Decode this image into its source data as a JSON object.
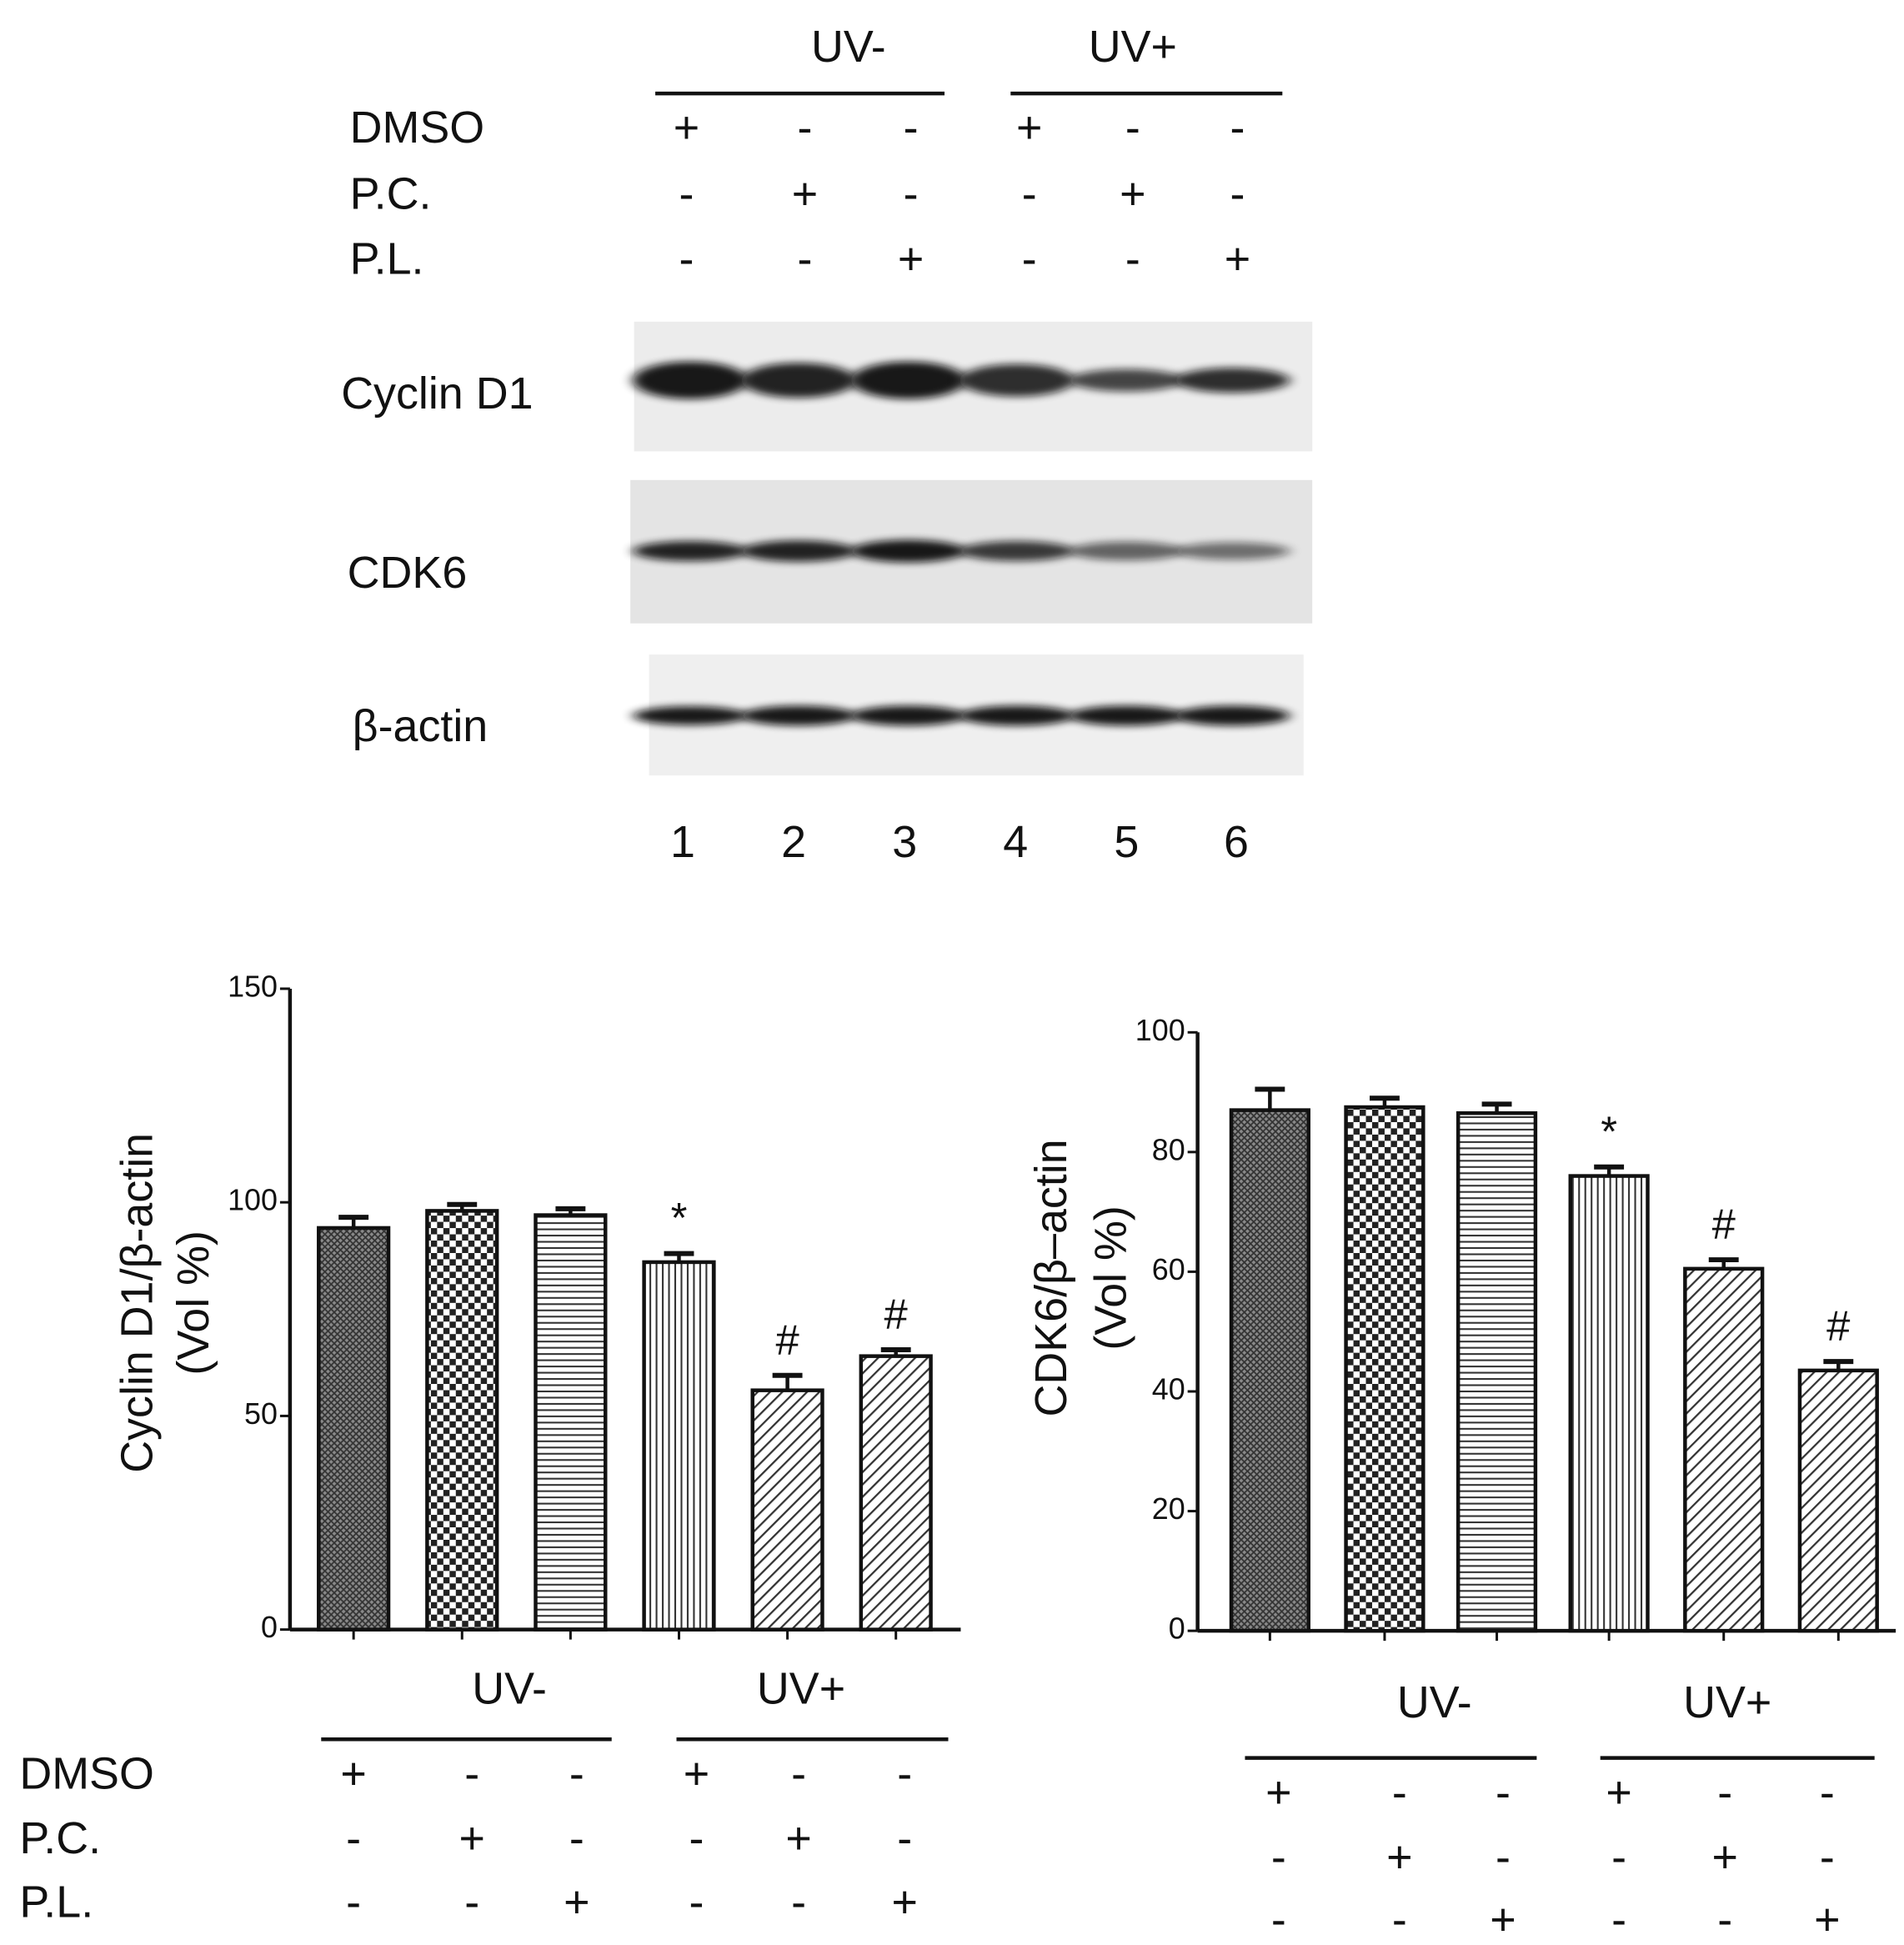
{
  "blot": {
    "groups": [
      "UV-",
      "UV+"
    ],
    "rows": [
      {
        "label": "DMSO",
        "signs": [
          "+",
          "-",
          "-",
          "+",
          "-",
          "-"
        ]
      },
      {
        "label": "P.C.",
        "signs": [
          "-",
          "+",
          "-",
          "-",
          "+",
          "-"
        ]
      },
      {
        "label": "P.L.",
        "signs": [
          "-",
          "-",
          "+",
          "-",
          "-",
          "+"
        ]
      }
    ],
    "bands": [
      "Cyclin D1",
      "CDK6",
      "β-actin"
    ],
    "lanes": [
      "1",
      "2",
      "3",
      "4",
      "5",
      "6"
    ]
  },
  "chart_data": [
    {
      "type": "bar",
      "ylabel": [
        "Cyclin D1/β-actin",
        "(Vol %)"
      ],
      "values": [
        94,
        98,
        97,
        86,
        56,
        64
      ],
      "errors": [
        2.5,
        1.5,
        1.5,
        2,
        3.5,
        1.5
      ],
      "significance": [
        null,
        null,
        null,
        "*",
        "#",
        "#"
      ],
      "patterns": [
        "crosshatch",
        "checker",
        "horizontal",
        "vertical",
        "diagonal",
        "diagonal"
      ],
      "ylim": [
        0,
        150
      ],
      "yticks": [
        0,
        50,
        100,
        150
      ],
      "conditions": {
        "groups": [
          "UV-",
          "UV+"
        ],
        "rows": [
          {
            "label": "DMSO",
            "signs": [
              "+",
              "-",
              "-",
              "+",
              "-",
              "-"
            ]
          },
          {
            "label": "P.C.",
            "signs": [
              "-",
              "+",
              "-",
              "-",
              "+",
              "-"
            ]
          },
          {
            "label": "P.L.",
            "signs": [
              "-",
              "-",
              "+",
              "-",
              "-",
              "+"
            ]
          }
        ]
      }
    },
    {
      "type": "bar",
      "ylabel": [
        "CDK6/β–actin",
        "(Vol %)"
      ],
      "values": [
        87,
        87.5,
        86.5,
        76,
        60.5,
        43.5
      ],
      "errors": [
        3.5,
        1.5,
        1.5,
        1.5,
        1.5,
        1.5
      ],
      "significance": [
        null,
        null,
        null,
        "*",
        "#",
        "#"
      ],
      "patterns": [
        "crosshatch",
        "checker",
        "horizontal",
        "vertical",
        "diagonal",
        "diagonal"
      ],
      "ylim": [
        0,
        100
      ],
      "yticks": [
        0,
        20,
        40,
        60,
        80,
        100
      ],
      "conditions": {
        "groups": [
          "UV-",
          "UV+"
        ],
        "rows": [
          {
            "signs": [
              "+",
              "-",
              "-",
              "+",
              "-",
              "-"
            ]
          },
          {
            "signs": [
              "-",
              "+",
              "-",
              "-",
              "+",
              "-"
            ]
          },
          {
            "signs": [
              "-",
              "-",
              "+",
              "-",
              "-",
              "+"
            ]
          }
        ]
      }
    }
  ]
}
